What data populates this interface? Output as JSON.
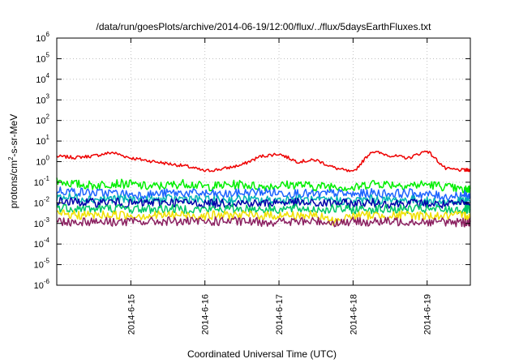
{
  "chart_data": {
    "type": "line",
    "title": "/data/run/goesPlots/archive/2014-06-19/12:00/flux/../flux/5daysEarthFluxes.txt",
    "xlabel": "Coordinated Universal Time (UTC)",
    "ylabel": "protons/cm²-s-sr-MeV",
    "ylabel_parts": {
      "pre": "protons/cm",
      "sup": "2",
      "post": "-s-sr-MeV"
    },
    "yscale": "log",
    "ylim": [
      1e-06,
      1000000.0
    ],
    "xlim": [
      "2014-06-14 00:00",
      "2014-06-19 14:00"
    ],
    "grid": true,
    "y_ticks": [
      {
        "value": 1e-06,
        "base": "10",
        "exp": "-6"
      },
      {
        "value": 1e-05,
        "base": "10",
        "exp": "-5"
      },
      {
        "value": 0.0001,
        "base": "10",
        "exp": "-4"
      },
      {
        "value": 0.001,
        "base": "10",
        "exp": "-3"
      },
      {
        "value": 0.01,
        "base": "10",
        "exp": "-2"
      },
      {
        "value": 0.1,
        "base": "10",
        "exp": "-1"
      },
      {
        "value": 1,
        "base": "10",
        "exp": "0"
      },
      {
        "value": 10,
        "base": "10",
        "exp": "1"
      },
      {
        "value": 100,
        "base": "10",
        "exp": "2"
      },
      {
        "value": 1000,
        "base": "10",
        "exp": "3"
      },
      {
        "value": 10000,
        "base": "10",
        "exp": "4"
      },
      {
        "value": 100000,
        "base": "10",
        "exp": "5"
      },
      {
        "value": 1000000,
        "base": "10",
        "exp": "6"
      }
    ],
    "x_ticks": [
      "2014-6-15",
      "2014-6-16",
      "2014-6-17",
      "2014-6-18",
      "2014-6-19"
    ],
    "x": [
      "2014-06-14 00:00",
      "2014-06-14 06:00",
      "2014-06-14 12:00",
      "2014-06-14 18:00",
      "2014-06-15 00:00",
      "2014-06-15 06:00",
      "2014-06-15 12:00",
      "2014-06-15 18:00",
      "2014-06-16 00:00",
      "2014-06-16 06:00",
      "2014-06-16 12:00",
      "2014-06-16 18:00",
      "2014-06-17 00:00",
      "2014-06-17 06:00",
      "2014-06-17 12:00",
      "2014-06-17 18:00",
      "2014-06-18 00:00",
      "2014-06-18 06:00",
      "2014-06-18 12:00",
      "2014-06-18 18:00",
      "2014-06-19 00:00",
      "2014-06-19 06:00",
      "2014-06-19 12:00",
      "2014-06-19 14:00"
    ],
    "series": [
      {
        "color": "#ee0000",
        "values": [
          1.8,
          1.6,
          1.9,
          2.8,
          1.5,
          1.1,
          0.8,
          0.6,
          0.35,
          0.45,
          0.7,
          1.8,
          2.4,
          1.0,
          1.2,
          0.5,
          0.3,
          3.2,
          2.0,
          1.5,
          3.5,
          0.45,
          0.38,
          0.4
        ]
      },
      {
        "color": "#00ee00",
        "values": [
          0.12,
          0.08,
          0.07,
          0.09,
          0.08,
          0.06,
          0.07,
          0.09,
          0.06,
          0.07,
          0.08,
          0.06,
          0.07,
          0.08,
          0.06,
          0.07,
          0.05,
          0.09,
          0.08,
          0.07,
          0.08,
          0.06,
          0.04,
          0.05
        ]
      },
      {
        "color": "#1e64ff",
        "values": [
          0.04,
          0.035,
          0.03,
          0.03,
          0.025,
          0.025,
          0.03,
          0.03,
          0.028,
          0.025,
          0.03,
          0.035,
          0.03,
          0.03,
          0.025,
          0.03,
          0.025,
          0.03,
          0.028,
          0.03,
          0.025,
          0.02,
          0.025,
          0.02
        ]
      },
      {
        "color": "#00b4b4",
        "values": [
          0.02,
          0.018,
          0.015,
          0.016,
          0.014,
          0.013,
          0.015,
          0.016,
          0.013,
          0.014,
          0.015,
          0.013,
          0.014,
          0.015,
          0.012,
          0.014,
          0.012,
          0.015,
          0.013,
          0.014,
          0.012,
          0.011,
          0.012,
          0.011
        ]
      },
      {
        "color": "#0000aa",
        "values": [
          0.012,
          0.011,
          0.01,
          0.011,
          0.009,
          0.01,
          0.011,
          0.01,
          0.009,
          0.01,
          0.01,
          0.009,
          0.011,
          0.01,
          0.009,
          0.01,
          0.009,
          0.01,
          0.009,
          0.01,
          0.009,
          0.008,
          0.009,
          0.008
        ]
      },
      {
        "color": "#00c864",
        "values": [
          0.006,
          0.0055,
          0.005,
          0.0055,
          0.005,
          0.005,
          0.0052,
          0.005,
          0.0048,
          0.005,
          0.0052,
          0.005,
          0.005,
          0.0052,
          0.0048,
          0.005,
          0.0048,
          0.005,
          0.0048,
          0.005,
          0.0048,
          0.0045,
          0.0048,
          0.0045
        ]
      },
      {
        "color": "#f0e000",
        "values": [
          0.0028,
          0.0026,
          0.0025,
          0.0026,
          0.0025,
          0.0024,
          0.0026,
          0.0025,
          0.0024,
          0.0025,
          0.0026,
          0.0024,
          0.0025,
          0.0025,
          0.0024,
          0.0012,
          0.0024,
          0.0025,
          0.0024,
          0.0025,
          0.0024,
          0.0023,
          0.0024,
          0.0023
        ]
      },
      {
        "color": "#8b2060",
        "values": [
          0.0013,
          0.0012,
          0.0013,
          0.0012,
          0.0012,
          0.0012,
          0.0013,
          0.0012,
          0.0012,
          0.0013,
          0.0012,
          0.0012,
          0.0012,
          0.0012,
          0.0013,
          0.0011,
          0.0012,
          0.0012,
          0.0012,
          0.0013,
          0.0012,
          0.0012,
          0.0011,
          0.0012
        ]
      }
    ]
  }
}
